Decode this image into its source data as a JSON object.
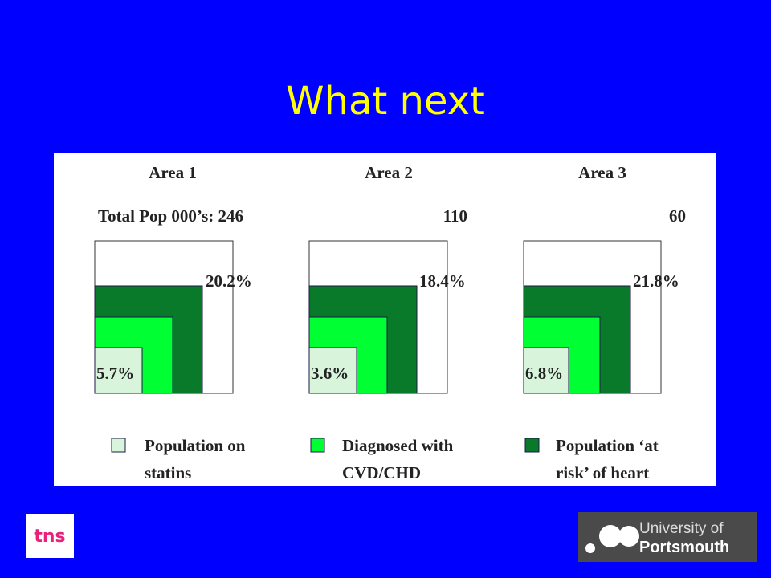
{
  "title": "What next",
  "panels": [
    {
      "area": "Area 1",
      "population": "Total Pop 000’s: 246",
      "at_risk": "20.2%",
      "on_statins": "5.7%"
    },
    {
      "area": "Area 2",
      "population": "110",
      "at_risk": "18.4%",
      "on_statins": "3.6%"
    },
    {
      "area": "Area 3",
      "population": "60",
      "at_risk": "21.8%",
      "on_statins": "6.8%"
    }
  ],
  "legend": [
    {
      "lines": [
        "Population on",
        "statins"
      ]
    },
    {
      "lines": [
        "Diagnosed with",
        "CVD/CHD"
      ]
    },
    {
      "lines": [
        "Population ‘at",
        "risk’ of heart"
      ]
    }
  ],
  "logos": {
    "left": "tns",
    "right": [
      "University of",
      "Portsmouth"
    ]
  }
}
